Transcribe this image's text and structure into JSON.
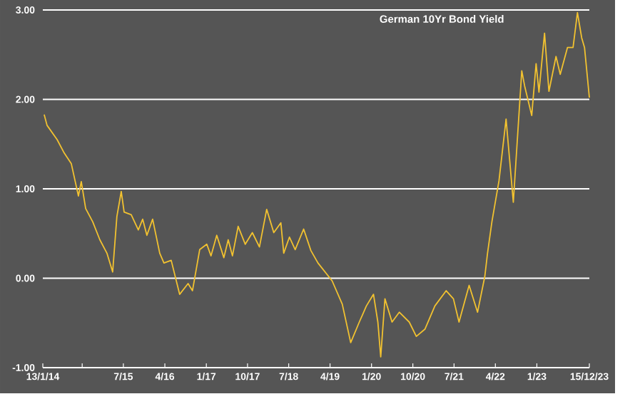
{
  "chart_data": {
    "type": "line",
    "title": "German 10Yr Bond Yield",
    "x": [
      "2014-01-22",
      "2014-02-10",
      "2014-04-18",
      "2014-06-04",
      "2014-07-21",
      "2014-09-06",
      "2014-09-25",
      "2014-10-24",
      "2014-12-10",
      "2015-01-26",
      "2015-03-14",
      "2015-04-21",
      "2015-05-19",
      "2015-06-17",
      "2015-07-06",
      "2015-08-22",
      "2015-10-08",
      "2015-11-06",
      "2015-12-04",
      "2016-01-11",
      "2016-02-27",
      "2016-03-26",
      "2016-05-13",
      "2016-07-08",
      "2016-09-02",
      "2016-10-01",
      "2016-11-18",
      "2017-01-04",
      "2017-02-01",
      "2017-03-11",
      "2017-04-27",
      "2017-05-26",
      "2017-06-23",
      "2017-07-31",
      "2017-09-16",
      "2017-11-02",
      "2017-12-19",
      "2018-02-05",
      "2018-03-24",
      "2018-05-10",
      "2018-05-29",
      "2018-07-06",
      "2018-08-13",
      "2018-10-08",
      "2018-11-25",
      "2019-01-11",
      "2019-04-15",
      "2019-06-21",
      "2019-08-16",
      "2019-10-12",
      "2019-11-28",
      "2020-01-14",
      "2020-02-12",
      "2020-03-02",
      "2020-03-30",
      "2020-05-16",
      "2020-07-03",
      "2020-09-07",
      "2020-10-24",
      "2020-12-20",
      "2021-02-24",
      "2021-05-10",
      "2021-06-27",
      "2021-08-03",
      "2021-10-09",
      "2021-12-04",
      "2022-01-21",
      "2022-02-08",
      "2022-03-09",
      "2022-04-25",
      "2022-06-11",
      "2022-07-29",
      "2022-09-23",
      "2022-10-12",
      "2022-11-28",
      "2022-12-27",
      "2023-01-15",
      "2023-02-21",
      "2023-03-22",
      "2023-05-08",
      "2023-06-05",
      "2023-07-23",
      "2023-08-29",
      "2023-09-27",
      "2023-10-25",
      "2023-11-13",
      "2023-12-15"
    ],
    "series": [
      {
        "color": "#f2c230",
        "values": [
          1.83,
          1.71,
          1.55,
          1.4,
          1.28,
          0.92,
          1.08,
          0.78,
          0.63,
          0.43,
          0.28,
          0.07,
          0.69,
          0.97,
          0.74,
          0.71,
          0.54,
          0.66,
          0.48,
          0.66,
          0.28,
          0.17,
          0.2,
          -0.18,
          -0.06,
          -0.14,
          0.32,
          0.38,
          0.25,
          0.48,
          0.23,
          0.43,
          0.25,
          0.58,
          0.38,
          0.51,
          0.35,
          0.77,
          0.51,
          0.62,
          0.28,
          0.46,
          0.32,
          0.55,
          0.31,
          0.17,
          -0.03,
          -0.29,
          -0.72,
          -0.49,
          -0.31,
          -0.18,
          -0.49,
          -0.88,
          -0.23,
          -0.49,
          -0.38,
          -0.49,
          -0.65,
          -0.57,
          -0.31,
          -0.14,
          -0.23,
          -0.49,
          -0.08,
          -0.38,
          0.02,
          0.28,
          0.63,
          1.09,
          1.78,
          0.85,
          2.32,
          2.15,
          1.82,
          2.4,
          2.08,
          2.74,
          2.09,
          2.48,
          2.28,
          2.58,
          2.58,
          2.97,
          2.69,
          2.58,
          2.02
        ]
      }
    ],
    "xlim": [
      "2014-01-13",
      "2023-12-15"
    ],
    "xticks": [
      {
        "value": "2014-01-13",
        "label": "13/1/14"
      },
      {
        "value": "2014-10-01",
        "label": null
      },
      {
        "value": "2015-07-01",
        "label": "7/15"
      },
      {
        "value": "2016-04-01",
        "label": "4/16"
      },
      {
        "value": "2017-01-01",
        "label": "1/17"
      },
      {
        "value": "2017-10-01",
        "label": "10/17"
      },
      {
        "value": "2018-07-01",
        "label": "7/18"
      },
      {
        "value": "2019-04-01",
        "label": "4/19"
      },
      {
        "value": "2020-01-01",
        "label": "1/20"
      },
      {
        "value": "2020-10-01",
        "label": "10/20"
      },
      {
        "value": "2021-07-01",
        "label": "7/21"
      },
      {
        "value": "2022-04-01",
        "label": "4/22"
      },
      {
        "value": "2023-01-01",
        "label": "1/23"
      },
      {
        "value": "2023-12-15",
        "label": "15/12/23"
      }
    ],
    "ylim": [
      -1,
      3
    ],
    "yticks": [
      {
        "value": -1,
        "label": "-1.00"
      },
      {
        "value": 0,
        "label": "0.00"
      },
      {
        "value": 1,
        "label": "1.00"
      },
      {
        "value": 2,
        "label": "2.00"
      },
      {
        "value": 3,
        "label": "3.00"
      }
    ],
    "grid": "y",
    "marker": "none",
    "line_style": "solid"
  }
}
